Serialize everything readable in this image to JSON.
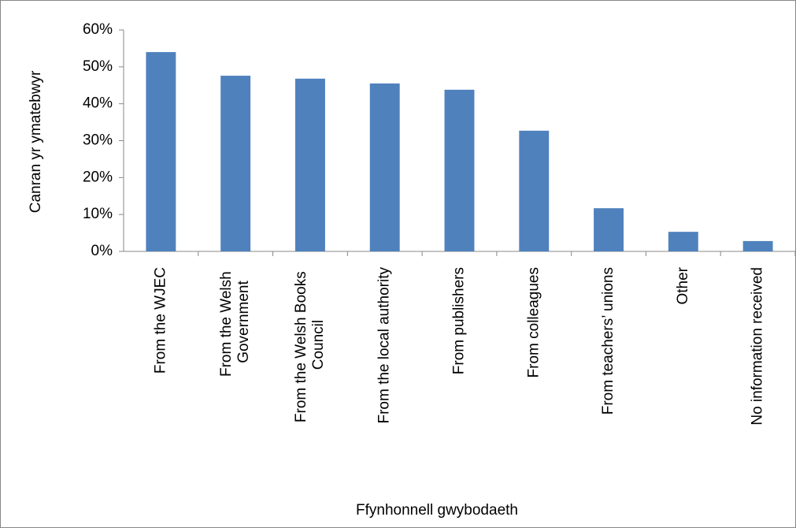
{
  "chart_data": {
    "type": "bar",
    "x_label": "Ffynhonnell gwybodaeth",
    "y_label": "Canran yr ymatebwyr",
    "categories": [
      "From the WJEC",
      "From the Welsh Government",
      "From the Welsh Books Council",
      "From the local authority",
      "From publishers",
      "From colleagues",
      "From teachers’ unions",
      "Other",
      "No information received"
    ],
    "values": [
      54.0,
      47.6,
      46.8,
      45.5,
      43.8,
      32.7,
      11.7,
      5.3,
      2.8
    ],
    "color": "#4f81bd",
    "ylim": [
      0,
      60
    ],
    "yticks": [
      {
        "value": 0,
        "label": "0%"
      },
      {
        "value": 10,
        "label": "10%"
      },
      {
        "value": 20,
        "label": "20%"
      },
      {
        "value": 30,
        "label": "30%"
      },
      {
        "value": 40,
        "label": "40%"
      },
      {
        "value": 50,
        "label": "50%"
      },
      {
        "value": 60,
        "label": "60%"
      }
    ],
    "grid": false
  }
}
